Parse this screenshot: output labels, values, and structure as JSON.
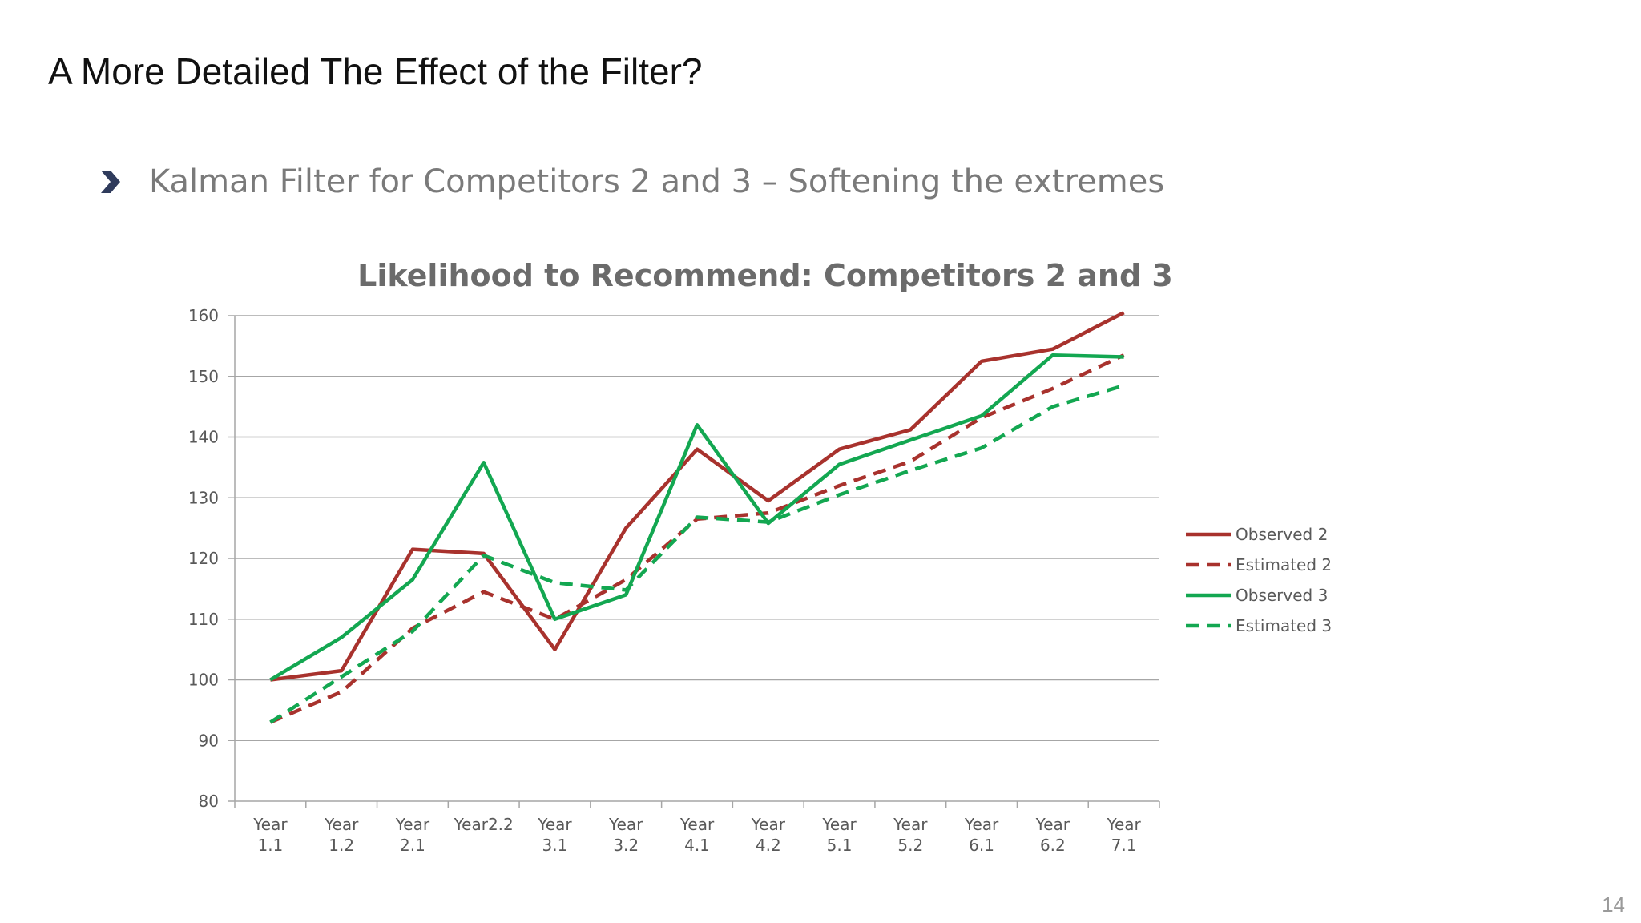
{
  "slide": {
    "title": "A More Detailed The Effect of the Filter?",
    "bullet": "Kalman Filter for Competitors 2 and 3 – Softening the extremes",
    "page_number": "14"
  },
  "chart_data": {
    "type": "line",
    "title": "Likelihood to Recommend: Competitors 2 and 3",
    "xlabel": "",
    "ylabel": "",
    "categories": [
      [
        "Year",
        "1.1"
      ],
      [
        "Year",
        "1.2"
      ],
      [
        "Year",
        "2.1"
      ],
      [
        "Year2.2"
      ],
      [
        "Year",
        "3.1"
      ],
      [
        "Year",
        "3.2"
      ],
      [
        "Year",
        "4.1"
      ],
      [
        "Year",
        "4.2"
      ],
      [
        "Year",
        "5.1"
      ],
      [
        "Year",
        "5.2"
      ],
      [
        "Year",
        "6.1"
      ],
      [
        "Year",
        "6.2"
      ],
      [
        "Year",
        "7.1"
      ]
    ],
    "ylim": [
      80,
      160
    ],
    "yticks": [
      80,
      90,
      100,
      110,
      120,
      130,
      140,
      150,
      160
    ],
    "grid": true,
    "legend_position": "right",
    "series": [
      {
        "name": "Observed 2",
        "color": "#a8322d",
        "dashed": false,
        "values": [
          100,
          101.5,
          121.5,
          120.8,
          105,
          125,
          138,
          129.5,
          138,
          141.2,
          152.5,
          154.5,
          160.5
        ]
      },
      {
        "name": "Estimated 2",
        "color": "#a8322d",
        "dashed": true,
        "values": [
          93,
          98,
          108.5,
          114.5,
          110,
          116.5,
          126.5,
          127.5,
          132,
          136,
          143.2,
          148,
          153.5
        ]
      },
      {
        "name": "Observed 3",
        "color": "#13a751",
        "dashed": false,
        "values": [
          100,
          107,
          116.5,
          135.8,
          110,
          114,
          142,
          125.8,
          135.5,
          139.5,
          143.5,
          153.5,
          153.2
        ]
      },
      {
        "name": "Estimated 3",
        "color": "#13a751",
        "dashed": true,
        "values": [
          93,
          100.5,
          108,
          120.5,
          116,
          114.8,
          126.8,
          126,
          130.5,
          134.5,
          138.2,
          145,
          148.5
        ]
      }
    ]
  }
}
